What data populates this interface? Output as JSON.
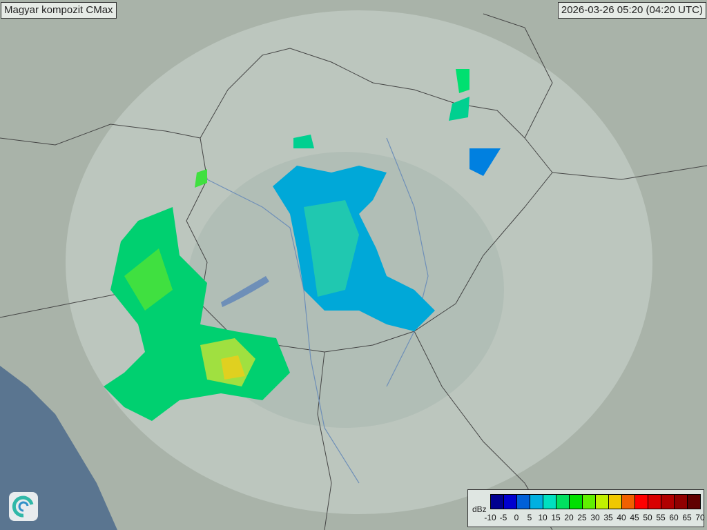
{
  "title": "Magyar kompozit  CMax",
  "timestamp": "2026-03-26 05:20 (04:20 UTC)",
  "legend": {
    "unit": "dBz",
    "ticks": [
      "-10",
      "-5",
      "0",
      "5",
      "10",
      "15",
      "20",
      "25",
      "30",
      "35",
      "40",
      "45",
      "50",
      "55",
      "60",
      "65",
      "70"
    ],
    "colors": [
      "#000090",
      "#0000d0",
      "#0060d8",
      "#00b0e0",
      "#00e0c0",
      "#00e060",
      "#00e000",
      "#60f000",
      "#c0f000",
      "#f0c800",
      "#f06000",
      "#ff0000",
      "#d80000",
      "#b00000",
      "#900000",
      "#600000"
    ]
  },
  "logo": {
    "icon": "spiral-logo-icon"
  },
  "colors": {
    "land": "#a9b3a9",
    "radar_range": "#c3ccc6",
    "sea": "#5a7590"
  }
}
